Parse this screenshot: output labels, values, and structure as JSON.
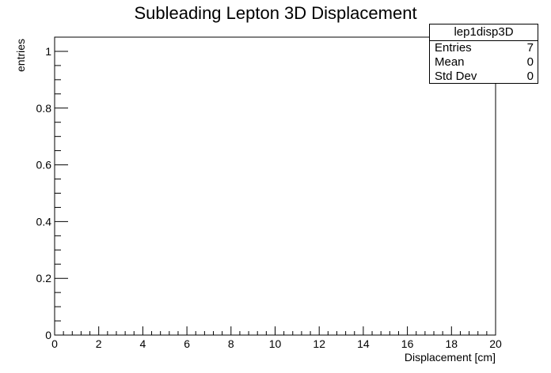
{
  "chart_data": {
    "type": "histogram",
    "title": "Subleading Lepton 3D Displacement",
    "xlabel": "Displacement [cm]",
    "ylabel": "entries",
    "xlim": [
      0,
      20
    ],
    "ylim": [
      0,
      1.05
    ],
    "xticks": [
      0,
      2,
      4,
      6,
      8,
      10,
      12,
      14,
      16,
      18,
      20
    ],
    "yticks": [
      0,
      0.2,
      0.4,
      0.6,
      0.8,
      1
    ],
    "ytick_labels": [
      "0",
      "0.2",
      "0.4",
      "0.6",
      "0.8",
      "1"
    ],
    "values": [],
    "grid": false,
    "stats": {
      "name": "lep1disp3D",
      "rows": [
        {
          "label": "Entries",
          "value": "7"
        },
        {
          "label": "Mean",
          "value": "0"
        },
        {
          "label": "Std Dev",
          "value": "0"
        }
      ]
    }
  }
}
